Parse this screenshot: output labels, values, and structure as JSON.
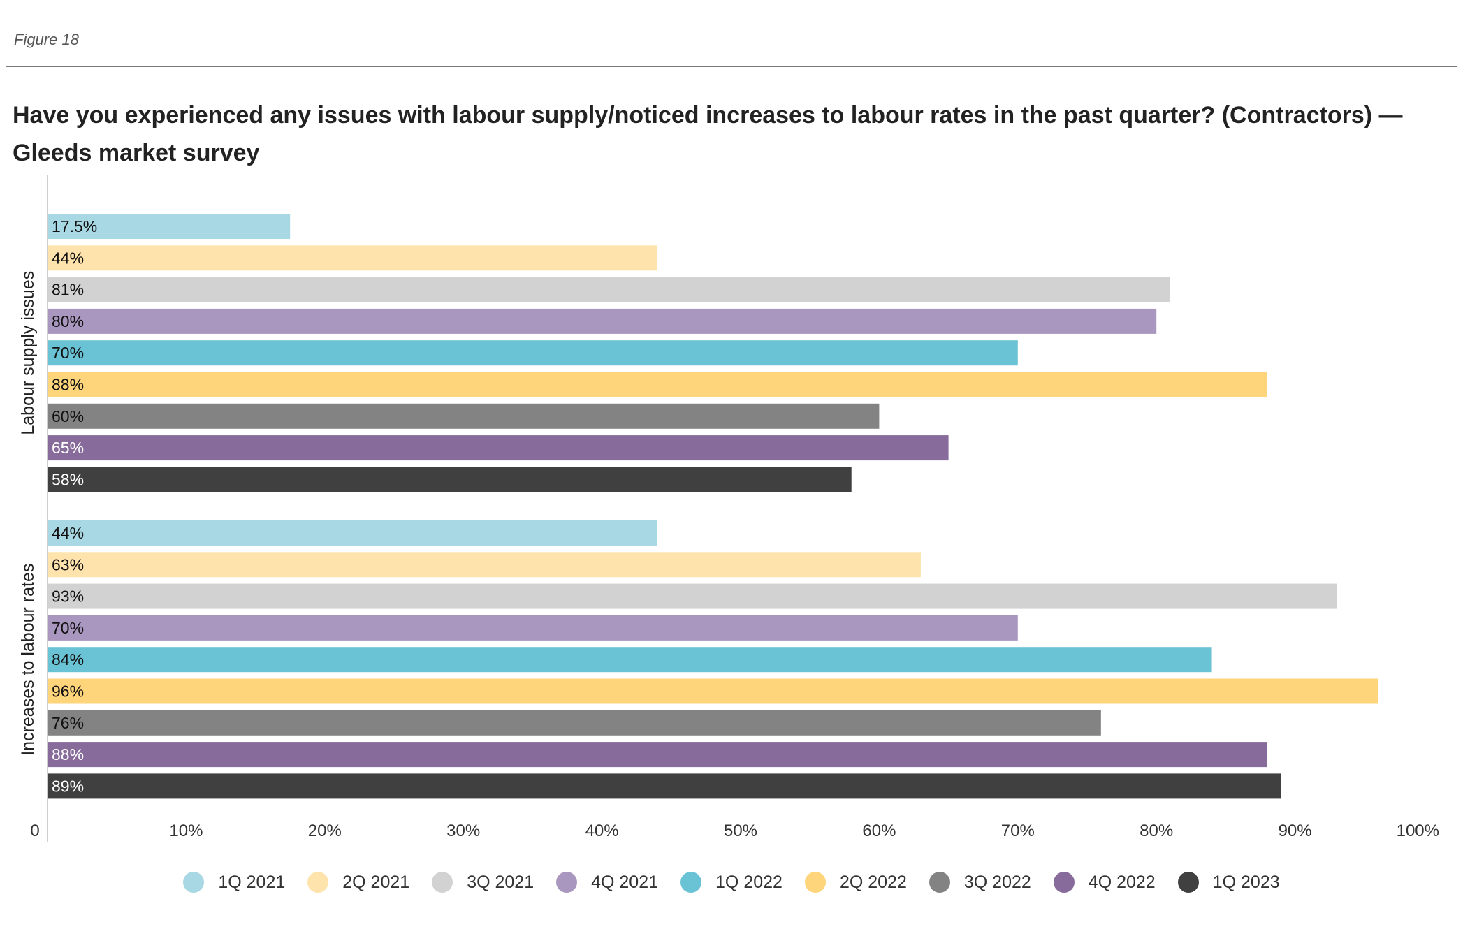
{
  "figure_label": "Figure 18",
  "title": "Have you experienced any issues with labour supply/noticed increases to labour rates in the past quarter? (Contractors) — Gleeds market survey",
  "chart_data": {
    "type": "bar",
    "orientation": "horizontal",
    "groups": [
      "Labour supply issues",
      "Increases to labour rates"
    ],
    "series": [
      {
        "name": "1Q 2021",
        "color": "#a8d8e3",
        "label_color": "#111111",
        "values": [
          17.5,
          44
        ],
        "labels": [
          "17.5%",
          "44%"
        ]
      },
      {
        "name": "2Q 2021",
        "color": "#fee3ac",
        "label_color": "#111111",
        "values": [
          44,
          63
        ],
        "labels": [
          "44%",
          "63%"
        ]
      },
      {
        "name": "3Q 2021",
        "color": "#d2d2d2",
        "label_color": "#111111",
        "values": [
          81,
          93
        ],
        "labels": [
          "81%",
          "93%"
        ]
      },
      {
        "name": "4Q 2021",
        "color": "#a997bf",
        "label_color": "#111111",
        "values": [
          80,
          70
        ],
        "labels": [
          "80%",
          "70%"
        ]
      },
      {
        "name": "1Q 2022",
        "color": "#6ac3d5",
        "label_color": "#111111",
        "values": [
          70,
          84
        ],
        "labels": [
          "70%",
          "84%"
        ]
      },
      {
        "name": "2Q 2022",
        "color": "#fed57a",
        "label_color": "#111111",
        "values": [
          88,
          96
        ],
        "labels": [
          "88%",
          "96%"
        ]
      },
      {
        "name": "3Q 2022",
        "color": "#838383",
        "label_color": "#111111",
        "values": [
          60,
          76
        ],
        "labels": [
          "60%",
          "76%"
        ]
      },
      {
        "name": "4Q 2022",
        "color": "#866b9b",
        "label_color": "#ffffff",
        "values": [
          65,
          88
        ],
        "labels": [
          "65%",
          "88%"
        ]
      },
      {
        "name": "1Q 2023",
        "color": "#404040",
        "label_color": "#ffffff",
        "values": [
          58,
          89
        ],
        "labels": [
          "58%",
          "89%"
        ]
      }
    ],
    "x_ticks": [
      {
        "value": 0,
        "label": "0"
      },
      {
        "value": 10,
        "label": "10%"
      },
      {
        "value": 20,
        "label": "20%"
      },
      {
        "value": 30,
        "label": "30%"
      },
      {
        "value": 40,
        "label": "40%"
      },
      {
        "value": 50,
        "label": "50%"
      },
      {
        "value": 60,
        "label": "60%"
      },
      {
        "value": 70,
        "label": "70%"
      },
      {
        "value": 80,
        "label": "80%"
      },
      {
        "value": 90,
        "label": "90%"
      },
      {
        "value": 100,
        "label": "100%"
      }
    ],
    "xlim": [
      0,
      100
    ],
    "grid": false,
    "legend_position": "bottom"
  }
}
